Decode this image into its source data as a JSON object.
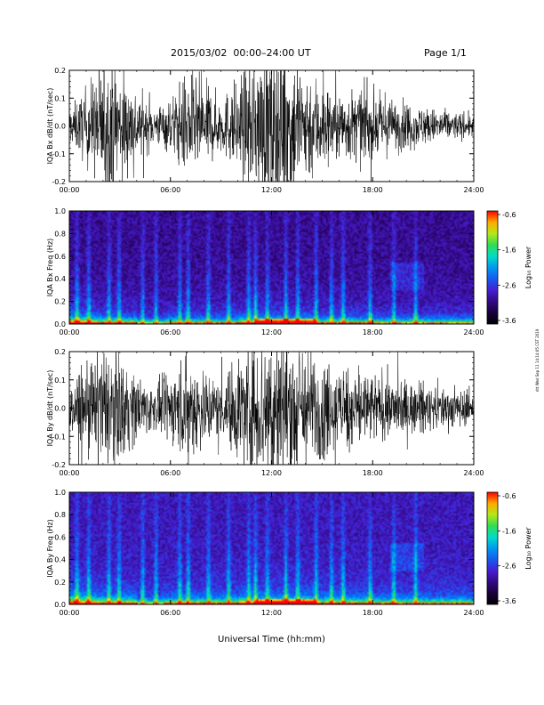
{
  "header": {
    "title": "2015/03/02  00:00–24:00 UT",
    "page": "Page 1/1"
  },
  "side_stamp": "ritt Wed Sep 11 14:14:05 CST 2019",
  "chart_data": [
    {
      "type": "line",
      "ylabel": "IQA Bx dB/dt (nT/sec)",
      "ylim": [
        -0.2,
        0.2
      ],
      "yticks": [
        "0.2",
        "0.1",
        "0.0",
        "-0.1",
        "-0.2"
      ],
      "xlim": [
        0,
        24
      ],
      "xticks": [
        "00:00",
        "06:00",
        "12:00",
        "18:00",
        "24:00"
      ],
      "envelope_hours": [
        0,
        1,
        2,
        3,
        4,
        5,
        6,
        7,
        8,
        9,
        10,
        11,
        12,
        13,
        14,
        15,
        16,
        17,
        18,
        19,
        20,
        21,
        22,
        23,
        24
      ],
      "envelope_amplitude": [
        0.06,
        0.14,
        0.25,
        0.22,
        0.13,
        0.07,
        0.1,
        0.2,
        0.16,
        0.1,
        0.18,
        0.25,
        0.3,
        0.3,
        0.22,
        0.17,
        0.12,
        0.14,
        0.12,
        0.1,
        0.09,
        0.07,
        0.06,
        0.05,
        0.04
      ]
    },
    {
      "type": "heatmap",
      "ylabel": "IQA Bx Freq (Hz)",
      "ylim": [
        0.0,
        1.0
      ],
      "yticks": [
        "1.0",
        "0.8",
        "0.6",
        "0.4",
        "0.2",
        "0.0"
      ],
      "xlim": [
        0,
        24
      ],
      "xticks": [
        "00:00",
        "06:00",
        "12:00",
        "18:00",
        "24:00"
      ],
      "colorbar": {
        "label": "Log₁₀ Power",
        "range": [
          -3.6,
          -0.6
        ],
        "ticks": [
          "-0.6",
          "-1.6",
          "-2.6",
          "-3.6"
        ]
      }
    },
    {
      "type": "line",
      "ylabel": "IQA By dB/dt (nT/sec)",
      "ylim": [
        -0.2,
        0.2
      ],
      "yticks": [
        "0.2",
        "0.1",
        "0.0",
        "-0.1",
        "-0.2"
      ],
      "xlim": [
        0,
        24
      ],
      "xticks": [
        "00:00",
        "06:00",
        "12:00",
        "18:00",
        "24:00"
      ],
      "envelope_hours": [
        0,
        1,
        2,
        3,
        4,
        5,
        6,
        7,
        8,
        9,
        10,
        11,
        12,
        13,
        14,
        15,
        16,
        17,
        18,
        19,
        20,
        21,
        22,
        23,
        24
      ],
      "envelope_amplitude": [
        0.07,
        0.14,
        0.22,
        0.2,
        0.12,
        0.08,
        0.12,
        0.2,
        0.15,
        0.1,
        0.2,
        0.28,
        0.3,
        0.3,
        0.24,
        0.18,
        0.15,
        0.16,
        0.13,
        0.11,
        0.1,
        0.09,
        0.08,
        0.07,
        0.06
      ]
    },
    {
      "type": "heatmap",
      "ylabel": "IQA By Freq (Hz)",
      "ylim": [
        0.0,
        1.0
      ],
      "yticks": [
        "1.0",
        "0.8",
        "0.6",
        "0.4",
        "0.2",
        "0.0"
      ],
      "xlim": [
        0,
        24
      ],
      "xticks": [
        "00:00",
        "06:00",
        "12:00",
        "18:00",
        "24:00"
      ],
      "xlabel": "Universal Time (hh:mm)",
      "colorbar": {
        "label": "Log₁₀ Power",
        "range": [
          -3.6,
          -0.6
        ],
        "ticks": [
          "-0.6",
          "-1.6",
          "-2.6",
          "-3.6"
        ]
      }
    }
  ]
}
